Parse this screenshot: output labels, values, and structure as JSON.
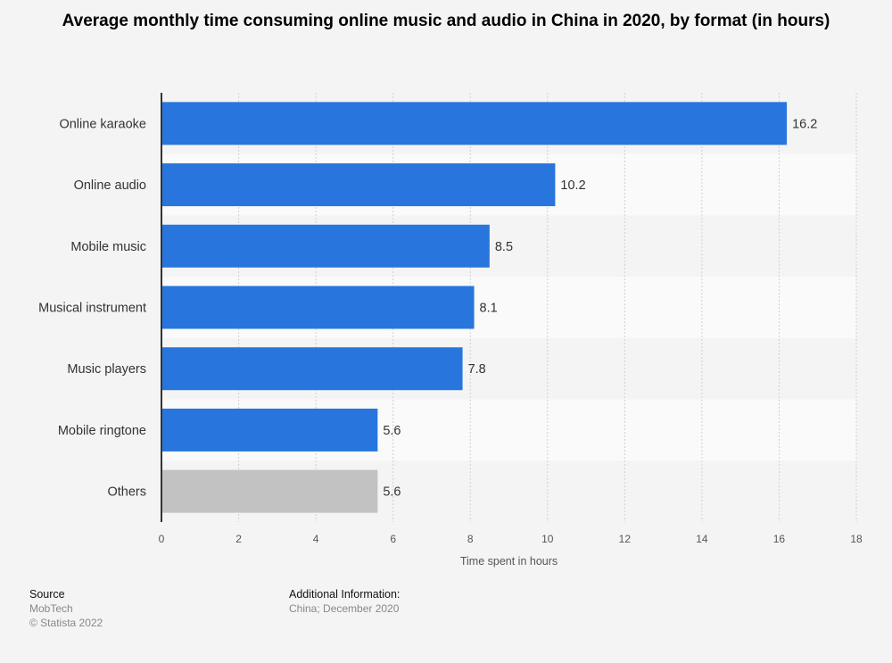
{
  "title": "Average monthly time consuming online music and audio in China in 2020, by format (in hours)",
  "chart_data": {
    "type": "bar",
    "orientation": "horizontal",
    "title": "Average monthly time consuming online music and audio in China in 2020, by format (in hours)",
    "xlabel": "Time spent in hours",
    "ylabel": "",
    "xlim": [
      0,
      18
    ],
    "ticks": [
      "0",
      "2",
      "4",
      "6",
      "8",
      "10",
      "12",
      "14",
      "16",
      "18"
    ],
    "categories": [
      "Online karaoke",
      "Online audio",
      "Mobile music",
      "Musical instrument",
      "Music players",
      "Mobile ringtone",
      "Others"
    ],
    "values": [
      16.2,
      10.2,
      8.5,
      8.1,
      7.8,
      5.6,
      5.6
    ],
    "value_labels": [
      "16.2",
      "10.2",
      "8.5",
      "8.1",
      "7.8",
      "5.6",
      "5.6"
    ],
    "bar_colors": [
      "#2876dd",
      "#2876dd",
      "#2876dd",
      "#2876dd",
      "#2876dd",
      "#2876dd",
      "#c2c2c2"
    ],
    "grid": true
  },
  "footer": {
    "source_heading": "Source",
    "source_name": "MobTech",
    "copyright": "© Statista 2022",
    "info_heading": "Additional Information:",
    "info_text": "China; December 2020"
  }
}
